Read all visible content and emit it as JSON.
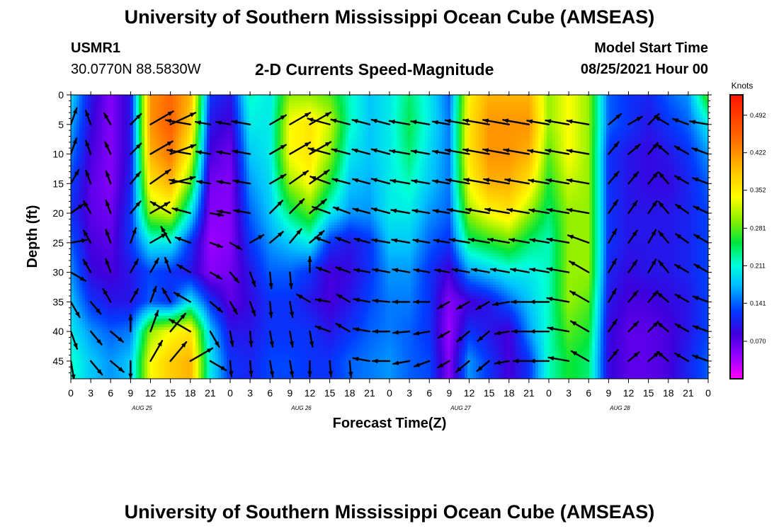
{
  "header": {
    "title": "University of Southern Mississippi Ocean Cube (AMSEAS)",
    "station_id": "USMR1",
    "coordinates": "30.0770N  88.5830W",
    "chart_title": "2-D Currents Speed-Magnitude",
    "start_label": "Model Start Time",
    "start_value": "08/25/2021 Hour 00"
  },
  "footer": {
    "title": "University of Southern Mississippi Ocean Cube (AMSEAS)"
  },
  "chart_data": {
    "type": "heatmap",
    "xlabel": "Forecast Time(Z)",
    "ylabel": "Depth (ft)",
    "ylim": [
      0,
      48
    ],
    "y_ticks": [
      0,
      5,
      10,
      15,
      20,
      25,
      30,
      35,
      40,
      45
    ],
    "x_hours": [
      0,
      3,
      6,
      9,
      12,
      15,
      18,
      21,
      0,
      3,
      6,
      9,
      12,
      15,
      18,
      21,
      0,
      3,
      6,
      9,
      12,
      15,
      18,
      21,
      0,
      3,
      6,
      9,
      12,
      15,
      18,
      21,
      0
    ],
    "day_labels": [
      "AUG 25",
      "AUG 26",
      "AUG 27",
      "AUG 28"
    ],
    "colorbar": {
      "unit": "Knots",
      "ticks": [
        0.492,
        0.422,
        0.352,
        0.281,
        0.211,
        0.141,
        0.07
      ],
      "range": [
        0.0,
        0.53
      ]
    },
    "depths": [
      0,
      5,
      10,
      15,
      20,
      25,
      30,
      35,
      40,
      45
    ],
    "speed": [
      [
        0.19,
        0.1,
        0.05,
        0.1,
        0.42,
        0.45,
        0.4,
        0.12,
        0.1,
        0.22,
        0.2,
        0.3,
        0.3,
        0.28,
        0.22,
        0.18,
        0.2,
        0.24,
        0.2,
        0.14,
        0.35,
        0.4,
        0.4,
        0.4,
        0.3,
        0.34,
        0.3,
        0.14,
        0.12,
        0.11,
        0.14,
        0.16,
        0.28
      ],
      [
        0.17,
        0.09,
        0.05,
        0.1,
        0.42,
        0.46,
        0.38,
        0.1,
        0.08,
        0.2,
        0.2,
        0.34,
        0.36,
        0.32,
        0.22,
        0.18,
        0.2,
        0.25,
        0.2,
        0.15,
        0.36,
        0.42,
        0.42,
        0.42,
        0.3,
        0.34,
        0.3,
        0.14,
        0.12,
        0.1,
        0.12,
        0.14,
        0.2
      ],
      [
        0.15,
        0.08,
        0.05,
        0.1,
        0.4,
        0.44,
        0.34,
        0.08,
        0.06,
        0.18,
        0.2,
        0.34,
        0.36,
        0.3,
        0.2,
        0.18,
        0.2,
        0.24,
        0.19,
        0.15,
        0.36,
        0.42,
        0.42,
        0.4,
        0.28,
        0.34,
        0.3,
        0.12,
        0.1,
        0.09,
        0.1,
        0.12,
        0.16
      ],
      [
        0.13,
        0.07,
        0.05,
        0.11,
        0.36,
        0.4,
        0.28,
        0.06,
        0.05,
        0.16,
        0.19,
        0.3,
        0.34,
        0.26,
        0.18,
        0.17,
        0.2,
        0.22,
        0.18,
        0.15,
        0.34,
        0.4,
        0.4,
        0.36,
        0.26,
        0.32,
        0.3,
        0.12,
        0.1,
        0.09,
        0.09,
        0.11,
        0.14
      ],
      [
        0.12,
        0.07,
        0.06,
        0.12,
        0.3,
        0.32,
        0.2,
        0.05,
        0.05,
        0.14,
        0.18,
        0.24,
        0.28,
        0.2,
        0.16,
        0.16,
        0.2,
        0.2,
        0.16,
        0.14,
        0.3,
        0.34,
        0.36,
        0.3,
        0.24,
        0.3,
        0.3,
        0.12,
        0.1,
        0.1,
        0.1,
        0.11,
        0.13
      ],
      [
        0.14,
        0.08,
        0.07,
        0.12,
        0.2,
        0.2,
        0.12,
        0.04,
        0.05,
        0.12,
        0.16,
        0.18,
        0.2,
        0.12,
        0.1,
        0.12,
        0.18,
        0.18,
        0.14,
        0.12,
        0.24,
        0.26,
        0.28,
        0.24,
        0.22,
        0.3,
        0.3,
        0.12,
        0.1,
        0.1,
        0.1,
        0.11,
        0.13
      ],
      [
        0.16,
        0.09,
        0.08,
        0.1,
        0.13,
        0.12,
        0.1,
        0.05,
        0.06,
        0.1,
        0.14,
        0.14,
        0.12,
        0.08,
        0.09,
        0.12,
        0.16,
        0.16,
        0.12,
        0.08,
        0.16,
        0.18,
        0.2,
        0.2,
        0.22,
        0.3,
        0.3,
        0.11,
        0.09,
        0.1,
        0.1,
        0.11,
        0.13
      ],
      [
        0.18,
        0.12,
        0.1,
        0.1,
        0.14,
        0.12,
        0.2,
        0.12,
        0.07,
        0.09,
        0.12,
        0.12,
        0.1,
        0.08,
        0.1,
        0.13,
        0.15,
        0.15,
        0.12,
        0.05,
        0.08,
        0.1,
        0.14,
        0.18,
        0.22,
        0.3,
        0.28,
        0.1,
        0.08,
        0.08,
        0.09,
        0.1,
        0.13
      ],
      [
        0.2,
        0.16,
        0.14,
        0.15,
        0.3,
        0.34,
        0.36,
        0.18,
        0.1,
        0.1,
        0.12,
        0.12,
        0.12,
        0.1,
        0.12,
        0.14,
        0.15,
        0.14,
        0.12,
        0.04,
        0.12,
        0.1,
        0.08,
        0.16,
        0.22,
        0.28,
        0.26,
        0.09,
        0.07,
        0.07,
        0.08,
        0.1,
        0.13
      ],
      [
        0.22,
        0.18,
        0.16,
        0.18,
        0.34,
        0.38,
        0.4,
        0.2,
        0.12,
        0.11,
        0.13,
        0.13,
        0.12,
        0.12,
        0.14,
        0.15,
        0.16,
        0.14,
        0.13,
        0.05,
        0.16,
        0.12,
        0.08,
        0.12,
        0.22,
        0.26,
        0.24,
        0.09,
        0.07,
        0.07,
        0.08,
        0.11,
        0.14
      ]
    ],
    "direction_deg": [
      [
        20,
        -20,
        -45,
        5,
        60,
        0,
        0,
        -80,
        -80,
        -80,
        60,
        60,
        60,
        -75,
        -75,
        -75,
        -75,
        -80,
        -80,
        -80,
        -80,
        -80,
        -80,
        -80,
        -80,
        -80,
        -80,
        60,
        60,
        55,
        -70,
        -75,
        -80
      ],
      [
        20,
        -20,
        -30,
        45,
        60,
        65,
        -80,
        -80,
        -80,
        -80,
        60,
        60,
        60,
        -75,
        -75,
        -75,
        -75,
        -80,
        -80,
        -80,
        -80,
        -80,
        -80,
        -80,
        -80,
        -80,
        -80,
        50,
        60,
        45,
        -60,
        -70,
        -80
      ],
      [
        20,
        -20,
        -25,
        45,
        60,
        70,
        -80,
        -80,
        -80,
        -80,
        60,
        60,
        60,
        -75,
        -75,
        -75,
        -75,
        -80,
        -80,
        -80,
        -80,
        -80,
        -80,
        -80,
        -80,
        -80,
        -80,
        40,
        50,
        40,
        -50,
        -60,
        -70
      ],
      [
        30,
        -20,
        -20,
        40,
        55,
        75,
        -80,
        -80,
        -80,
        -80,
        60,
        55,
        55,
        -70,
        -75,
        -75,
        -75,
        -80,
        -80,
        -80,
        -80,
        -80,
        -80,
        -80,
        -80,
        -80,
        -80,
        40,
        40,
        40,
        -40,
        -60,
        -70
      ],
      [
        55,
        -30,
        -20,
        40,
        60,
        -60,
        -75,
        100,
        -80,
        -80,
        45,
        45,
        50,
        -70,
        -70,
        -75,
        -75,
        -80,
        -80,
        -80,
        -80,
        -80,
        -80,
        -80,
        -80,
        -80,
        -80,
        35,
        35,
        35,
        -40,
        -55,
        -65
      ],
      [
        80,
        -30,
        -20,
        20,
        60,
        -30,
        -70,
        110,
        120,
        60,
        50,
        40,
        50,
        -70,
        -70,
        -75,
        -80,
        -80,
        -80,
        -80,
        -80,
        -80,
        -80,
        -80,
        -80,
        -80,
        -70,
        30,
        35,
        30,
        -40,
        -55,
        -60
      ],
      [
        120,
        -30,
        -20,
        30,
        30,
        -20,
        -60,
        120,
        140,
        160,
        175,
        175,
        0,
        -70,
        -70,
        -80,
        -80,
        -80,
        -80,
        -80,
        -80,
        -80,
        -80,
        -80,
        -80,
        -80,
        -60,
        30,
        35,
        30,
        -40,
        -60,
        -60
      ],
      [
        150,
        140,
        -30,
        30,
        20,
        -30,
        -60,
        130,
        150,
        160,
        175,
        170,
        -60,
        -80,
        -60,
        -80,
        -85,
        -90,
        -90,
        -120,
        -120,
        -120,
        -100,
        -90,
        -90,
        -80,
        -60,
        30,
        40,
        40,
        -50,
        -60,
        -70
      ],
      [
        160,
        140,
        130,
        0,
        20,
        40,
        -60,
        150,
        170,
        175,
        170,
        170,
        170,
        -70,
        -60,
        -80,
        -90,
        -95,
        -100,
        -120,
        -130,
        -130,
        -100,
        -90,
        -90,
        -80,
        -60,
        35,
        45,
        45,
        -50,
        -60,
        -70
      ],
      [
        170,
        140,
        130,
        180,
        30,
        40,
        60,
        120,
        175,
        175,
        170,
        170,
        180,
        175,
        175,
        -80,
        -90,
        -100,
        -110,
        -120,
        -130,
        -130,
        -100,
        -90,
        -90,
        -80,
        -60,
        40,
        50,
        50,
        -50,
        -60,
        -70
      ]
    ]
  }
}
